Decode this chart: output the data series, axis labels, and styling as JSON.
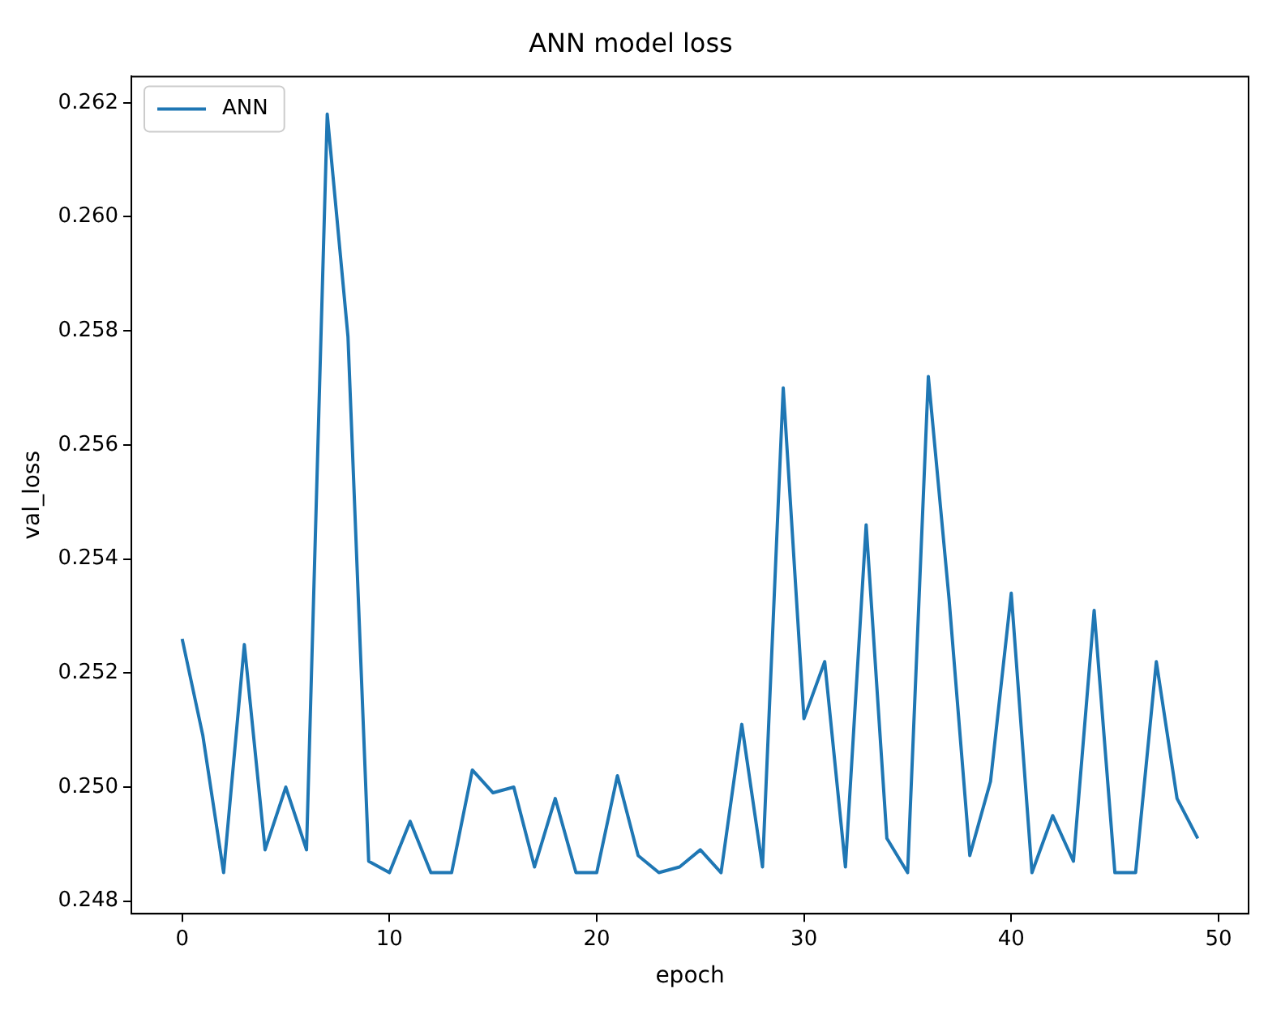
{
  "chart_data": {
    "type": "line",
    "title": "ANN model loss",
    "xlabel": "epoch",
    "ylabel": "val_loss",
    "x": [
      0,
      1,
      2,
      3,
      4,
      5,
      6,
      7,
      8,
      9,
      10,
      11,
      12,
      13,
      14,
      15,
      16,
      17,
      18,
      19,
      20,
      21,
      22,
      23,
      24,
      25,
      26,
      27,
      28,
      29,
      30,
      31,
      32,
      33,
      34,
      35,
      36,
      37,
      38,
      39,
      40,
      41,
      42,
      43,
      44,
      45,
      46,
      47,
      48,
      49
    ],
    "series": [
      {
        "name": "ANN",
        "color": "#1f77b4",
        "values": [
          0.2526,
          0.2509,
          0.2485,
          0.2525,
          0.2489,
          0.25,
          0.2489,
          0.2618,
          0.2579,
          0.2487,
          0.2485,
          0.2494,
          0.2485,
          0.2485,
          0.2503,
          0.2499,
          0.25,
          0.2486,
          0.2498,
          0.2485,
          0.2485,
          0.2502,
          0.2488,
          0.2485,
          0.2486,
          0.2489,
          0.2485,
          0.2511,
          0.2486,
          0.257,
          0.2512,
          0.2522,
          0.2486,
          0.2546,
          0.2491,
          0.2485,
          0.2572,
          0.2533,
          0.2488,
          0.2501,
          0.2534,
          0.2485,
          0.2495,
          0.2487,
          0.2531,
          0.2485,
          0.2485,
          0.2522,
          0.2498,
          0.2491
        ]
      }
    ],
    "xlim": [
      -2.45,
      51.45
    ],
    "ylim": [
      0.24778,
      0.26246
    ],
    "xticks": [
      0,
      10,
      20,
      30,
      40,
      50
    ],
    "yticks": [
      {
        "value": 0.248,
        "label": "0.248"
      },
      {
        "value": 0.25,
        "label": "0.250"
      },
      {
        "value": 0.252,
        "label": "0.252"
      },
      {
        "value": 0.254,
        "label": "0.254"
      },
      {
        "value": 0.256,
        "label": "0.256"
      },
      {
        "value": 0.258,
        "label": "0.258"
      },
      {
        "value": 0.26,
        "label": "0.260"
      },
      {
        "value": 0.262,
        "label": "0.262"
      }
    ],
    "legend": "top left",
    "grid": false,
    "marker": "none",
    "line_style": "solid"
  }
}
